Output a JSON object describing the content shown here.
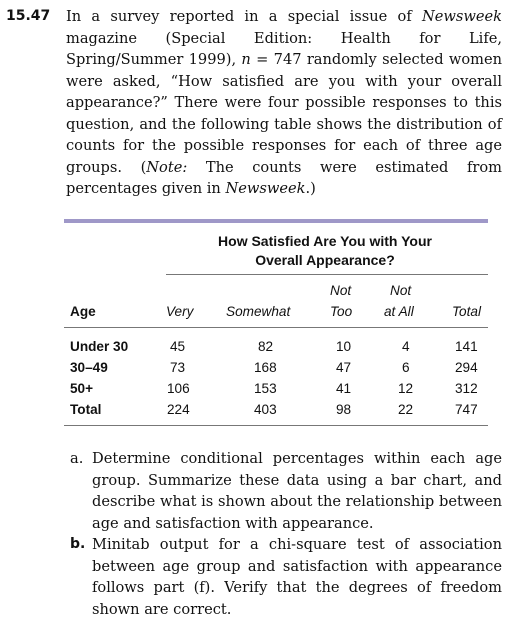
{
  "problem": {
    "number": "15.47",
    "text_1": "In a survey reported in a special issue of ",
    "magazine": "Newsweek",
    "text_2": " magazine (Special Edition: Health for Life, Spring/Summer 1999), ",
    "n_var": "n",
    "text_3": " = 747 randomly selected women were asked, “How satisfied are you with your overall appearance?” There were four possible responses to this question, and the following table shows the distribution of counts for the possible responses for each of three age groups. (",
    "note_label": "Note:",
    "text_4": " The counts were estimated from percentages given in ",
    "magazine_2": "Newsweek",
    "text_5": ".)"
  },
  "table": {
    "title_line1": "How Satisfied Are You with Your",
    "title_line2": "Overall Appearance?",
    "col_not_top_1": "Not",
    "col_not_top_2": "Not",
    "headers": [
      "Age",
      "Very",
      "Somewhat",
      "Too",
      "at All",
      "Total"
    ],
    "rows": [
      {
        "label": "Under 30",
        "values": [
          "45",
          "82",
          "10",
          "4",
          "141"
        ]
      },
      {
        "label": "30–49",
        "values": [
          "73",
          "168",
          "47",
          "6",
          "294"
        ]
      },
      {
        "label": "50+",
        "values": [
          "106",
          "153",
          "41",
          "12",
          "312"
        ]
      },
      {
        "label": "Total",
        "values": [
          "224",
          "403",
          "98",
          "22",
          "747"
        ]
      }
    ]
  },
  "parts": [
    {
      "label": "a.",
      "text": "Determine conditional percentages within each age group. Summarize these data using a bar chart, and describe what is shown about the relationship between age and satisfaction with appearance."
    },
    {
      "label": "b.",
      "text": "Minitab output for a chi-square test of association between age group and satisfaction with appearance follows part (f). Verify that the degrees of freedom shown are correct."
    }
  ],
  "colors": {
    "table_rule": "#9f98c8"
  }
}
